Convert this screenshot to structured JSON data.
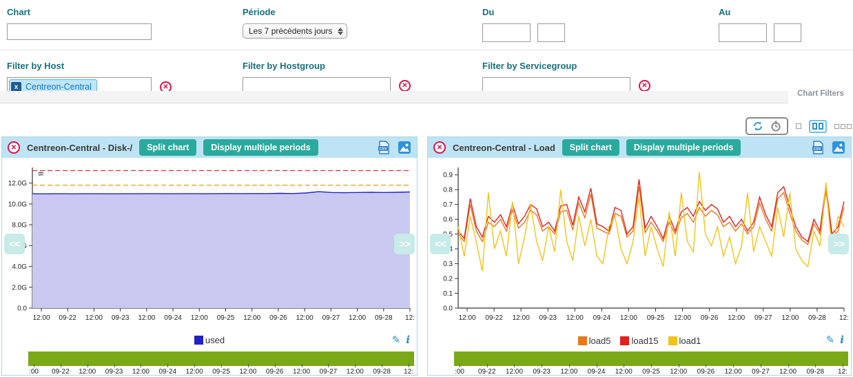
{
  "colors": {
    "label_teal": "#15707b",
    "button_teal": "#2aaa9c",
    "header_blue": "#bee3f4",
    "panel_border": "#a9d6ec",
    "timeline_green": "#7aa918",
    "remove_red": "#d9134b",
    "chip_bg": "#bfe7fb",
    "chip_text": "#1a72c8",
    "icon_blue": "#2a93d5"
  },
  "filter_form": {
    "row1": {
      "chart": {
        "label": "Chart",
        "value": ""
      },
      "periode": {
        "label": "Période",
        "value": "Les 7 précédents jours"
      },
      "du": {
        "label": "Du",
        "date": "",
        "time": ""
      },
      "au": {
        "label": "Au",
        "date": "",
        "time": ""
      }
    },
    "row2": {
      "host": {
        "label": "Filter by Host",
        "chip": "Centreon-Central",
        "chip_remove": "x"
      },
      "hostgroup": {
        "label": "Filter by Hostgroup",
        "value": ""
      },
      "servicegroup": {
        "label": "Filter by Servicegroup",
        "value": ""
      }
    },
    "clear_glyph": "✕",
    "panel_tab": "Chart Filters"
  },
  "toolbar": {
    "icons": [
      "refresh-icon",
      "clock-icon"
    ],
    "layouts": [
      {
        "name": "one-column",
        "selected": false
      },
      {
        "name": "two-columns",
        "selected": true
      },
      {
        "name": "three-columns",
        "selected": false
      }
    ]
  },
  "panels": [
    {
      "title": "Centreon-Central - Disk-/",
      "split_label": "Split chart",
      "periods_label": "Display multiple periods",
      "close_glyph": "✕",
      "csv_label": "CSV"
    },
    {
      "title": "Centreon-Central - Load",
      "split_label": "Split chart",
      "periods_label": "Display multiple periods",
      "close_glyph": "✕",
      "csv_label": "CSV"
    }
  ],
  "nav": {
    "prev": "<<",
    "next": ">>"
  },
  "chart_data": [
    {
      "type": "area",
      "title": "Centreon-Central - Disk-/",
      "ylabel": "B",
      "ylim": [
        0,
        13.5
      ],
      "yticks": [
        0,
        2,
        4,
        6,
        8,
        10,
        12
      ],
      "ytick_labels": [
        "0.0",
        "2.0G",
        "4.0G",
        "6.0G",
        "8.0G",
        "10.0G",
        "12.0G"
      ],
      "x_ticklabels": [
        "12:00",
        "09-22",
        "12:00",
        "09-23",
        "12:00",
        "09-24",
        "12:00",
        "09-25",
        "12:00",
        "09-26",
        "12:00",
        "09-27",
        "12:00",
        "09-28",
        "12:"
      ],
      "grid": false,
      "legend_position": "bottom-center",
      "thresholds": [
        {
          "name": "critical",
          "value": 13.2,
          "color": "#dd2c3e",
          "style": "dashed"
        },
        {
          "name": "warning",
          "value": 11.8,
          "color": "#f5a21c",
          "style": "dashed"
        }
      ],
      "series": [
        {
          "name": "used",
          "color": "#2420c6",
          "fill": "#c9c8f0",
          "values": [
            10.97,
            10.97,
            10.98,
            10.97,
            10.98,
            10.98,
            10.97,
            10.98,
            10.98,
            10.99,
            10.98,
            10.98,
            10.99,
            10.98,
            10.99,
            11.0,
            10.99,
            11.0,
            11.0,
            11.02,
            11.0,
            11.05,
            11.18,
            11.1,
            11.08,
            11.1,
            11.12,
            11.1,
            11.12,
            11.15
          ]
        }
      ],
      "timeline_labels": [
        ":00",
        "09-22",
        "12:00",
        "09-23",
        "12:00",
        "09-24",
        "12:00",
        "09-25",
        "12:00",
        "09-26",
        "12:00",
        "09-27",
        "12:00",
        "09-28",
        "12:"
      ]
    },
    {
      "type": "line",
      "title": "Centreon-Central - Load",
      "ylabel": "",
      "ylim": [
        0,
        0.95
      ],
      "yticks": [
        0,
        0.1,
        0.2,
        0.3,
        0.4,
        0.5,
        0.6,
        0.7,
        0.8,
        0.9
      ],
      "ytick_labels": [
        "0.0",
        "0.1",
        "0.2",
        "0.3",
        "0.4",
        "0.5",
        "0.6",
        "0.7",
        "0.8",
        "0.9"
      ],
      "x_ticklabels": [
        "12:00",
        "09-22",
        "12:00",
        "09-23",
        "12:00",
        "09-24",
        "12:00",
        "09-25",
        "12:00",
        "09-26",
        "12:00",
        "09-27",
        "12:00",
        "09-28",
        "12:"
      ],
      "grid": false,
      "legend_position": "bottom-center",
      "series": [
        {
          "name": "load5",
          "color": "#e8791c",
          "values": [
            0.5,
            0.45,
            0.7,
            0.52,
            0.45,
            0.58,
            0.55,
            0.6,
            0.52,
            0.66,
            0.54,
            0.58,
            0.66,
            0.63,
            0.52,
            0.55,
            0.5,
            0.65,
            0.66,
            0.53,
            0.71,
            0.61,
            0.77,
            0.54,
            0.52,
            0.5,
            0.64,
            0.62,
            0.48,
            0.52,
            0.82,
            0.51,
            0.58,
            0.52,
            0.45,
            0.58,
            0.5,
            0.61,
            0.64,
            0.58,
            0.68,
            0.62,
            0.66,
            0.63,
            0.55,
            0.58,
            0.52,
            0.57,
            0.5,
            0.55,
            0.71,
            0.6,
            0.52,
            0.74,
            0.78,
            0.64,
            0.52,
            0.46,
            0.43,
            0.57,
            0.5,
            0.79,
            0.48,
            0.52,
            0.68
          ]
        },
        {
          "name": "load15",
          "color": "#e2201c",
          "values": [
            0.52,
            0.47,
            0.74,
            0.55,
            0.48,
            0.62,
            0.58,
            0.63,
            0.55,
            0.7,
            0.57,
            0.62,
            0.7,
            0.67,
            0.55,
            0.58,
            0.52,
            0.69,
            0.7,
            0.56,
            0.75,
            0.65,
            0.81,
            0.57,
            0.55,
            0.52,
            0.68,
            0.66,
            0.5,
            0.55,
            0.87,
            0.54,
            0.62,
            0.55,
            0.47,
            0.62,
            0.52,
            0.65,
            0.68,
            0.62,
            0.72,
            0.66,
            0.7,
            0.67,
            0.58,
            0.62,
            0.55,
            0.6,
            0.52,
            0.58,
            0.75,
            0.63,
            0.55,
            0.78,
            0.82,
            0.68,
            0.55,
            0.48,
            0.45,
            0.6,
            0.52,
            0.83,
            0.5,
            0.55,
            0.72
          ]
        },
        {
          "name": "load1",
          "color": "#f2c318",
          "values": [
            0.55,
            0.35,
            0.62,
            0.45,
            0.25,
            0.78,
            0.4,
            0.52,
            0.35,
            0.72,
            0.3,
            0.48,
            0.7,
            0.45,
            0.32,
            0.55,
            0.38,
            0.8,
            0.45,
            0.32,
            0.62,
            0.42,
            0.6,
            0.35,
            0.3,
            0.55,
            0.62,
            0.4,
            0.3,
            0.45,
            0.75,
            0.35,
            0.55,
            0.4,
            0.28,
            0.65,
            0.35,
            0.78,
            0.45,
            0.38,
            0.92,
            0.5,
            0.42,
            0.55,
            0.35,
            0.48,
            0.3,
            0.42,
            0.78,
            0.38,
            0.55,
            0.45,
            0.35,
            0.68,
            0.48,
            0.78,
            0.4,
            0.32,
            0.28,
            0.52,
            0.42,
            0.85,
            0.38,
            0.62,
            0.55
          ]
        }
      ],
      "legend_order": [
        "load5",
        "load15",
        "load1"
      ],
      "timeline_labels": [
        ":00",
        "09-22",
        "12:00",
        "09-23",
        "12:00",
        "09-24",
        "12:00",
        "09-25",
        "12:00",
        "09-26",
        "12:00",
        "09-27",
        "12:00",
        "09-28",
        "12:"
      ]
    }
  ]
}
